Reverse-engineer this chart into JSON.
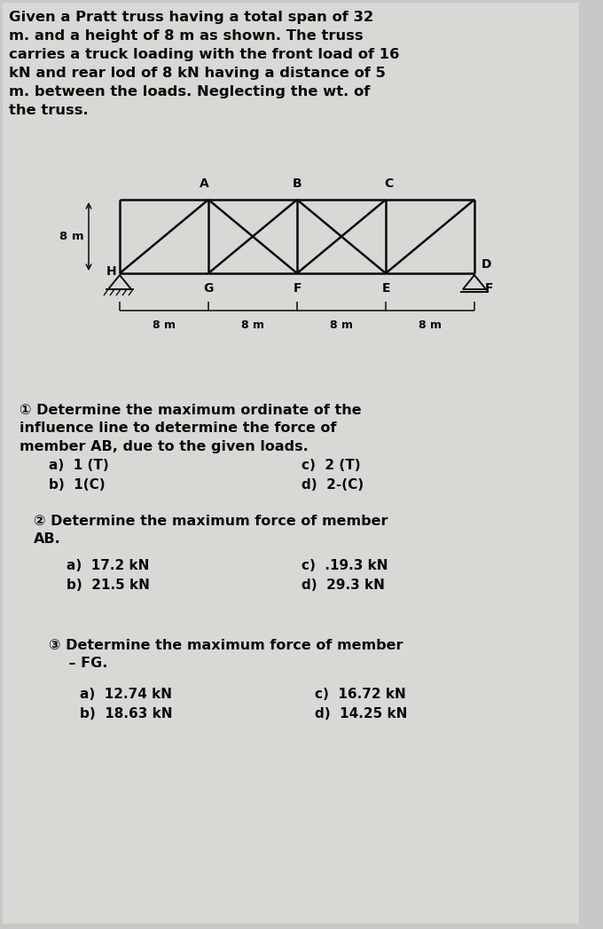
{
  "bg_color": "#c8c8c8",
  "paper_color": "#d8d8d4",
  "title_text": "Given a Pratt truss having a total span of 32\nm. and a height of 8 m as shown. The truss\ncarries a truck loading with the front load of 16\nkN and rear lod of 8 kN having a distance of 5\nm. between the loads. Neglecting the wt. of\nthe truss.",
  "lbl_8m": "8 m",
  "lbl_H": "H",
  "lbl_A": "A",
  "lbl_B": "B",
  "lbl_C": "C",
  "lbl_D": "D",
  "lbl_G": "G",
  "lbl_F": "F",
  "lbl_E": "E",
  "lbl_Fright": "F",
  "bottom_spans": [
    "8 m",
    "8 m",
    "8 m",
    "8 m"
  ],
  "q1_header": "① Determine the maximum ordinate of the\ninfluence line to determine the force of\nmember AB, due to the given loads.",
  "q1_a": "a)  1 (T)",
  "q1_b": "b)  1(C)",
  "q1_c": "c)  2 (T)",
  "q1_d": "d)  2-(C)",
  "q2_header": "② Determine the maximum force of member\nAB.",
  "q2_a": "a)  17.2 kN",
  "q2_b": "b)  21.5 kN",
  "q2_c": "c)  .19.3 kN",
  "q2_d": "d)  29.3 kN",
  "q3_header": "③ Determine the maximum force of member\n    – FG.",
  "q3_a": "a)  12.74 kN",
  "q3_b": "b)  18.63 kN",
  "q3_c": "c)  16.72 kN",
  "q3_d": "d)  14.25 kN",
  "text_color": "#0a0a0a",
  "line_color": "#0a0a0a",
  "truss_lw": 1.8
}
